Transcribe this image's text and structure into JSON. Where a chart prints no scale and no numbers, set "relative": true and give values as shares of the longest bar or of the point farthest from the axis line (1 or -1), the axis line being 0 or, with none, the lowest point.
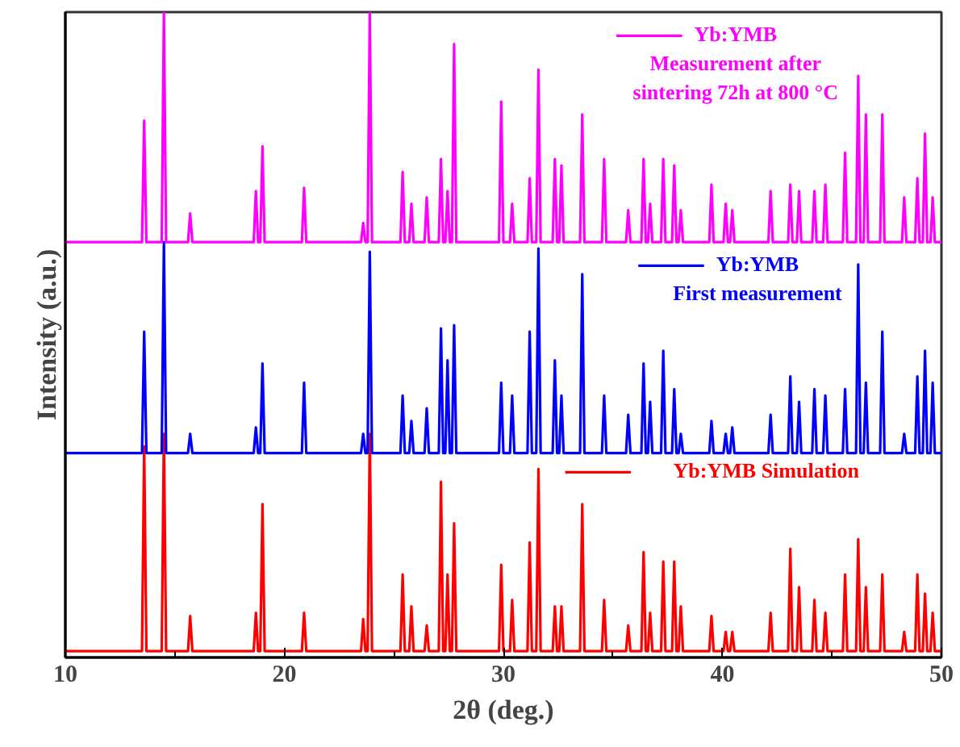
{
  "chart_data": {
    "type": "line",
    "relative": true,
    "xlabel": "2θ (deg.)",
    "ylabel": "Intensity (a.u.)",
    "grid": false,
    "tick_labels": "x",
    "legend": "top right",
    "xlim": [
      10,
      50
    ],
    "xticks": [
      10,
      {
        "value": 15,
        "label": null
      },
      20,
      {
        "value": 25,
        "label": null
      },
      30,
      {
        "value": 35,
        "label": null
      },
      40,
      {
        "value": 45,
        "label": null
      },
      50
    ],
    "x": [
      10,
      13.5,
      13.6,
      13.7,
      14.4,
      14.5,
      14.6,
      15.6,
      15.7,
      15.8,
      18.6,
      18.7,
      18.8,
      18.9,
      19.0,
      19.1,
      20.8,
      20.9,
      21.0,
      23.5,
      23.6,
      23.7,
      23.8,
      23.9,
      24.0,
      25.3,
      25.4,
      25.5,
      25.7,
      25.8,
      25.9,
      26.4,
      26.5,
      26.6,
      27.05,
      27.15,
      27.25,
      27.35,
      27.45,
      27.55,
      27.65,
      27.75,
      27.85,
      29.8,
      29.9,
      30.0,
      30.3,
      30.4,
      30.5,
      31.1,
      31.2,
      31.3,
      31.5,
      31.6,
      31.7,
      32.25,
      32.35,
      32.45,
      32.55,
      32.65,
      32.75,
      33.5,
      33.6,
      33.7,
      34.5,
      34.6,
      34.7,
      35.6,
      35.7,
      35.8,
      36.3,
      36.4,
      36.5,
      36.6,
      36.7,
      36.8,
      37.2,
      37.3,
      37.4,
      37.7,
      37.8,
      37.9,
      38.0,
      38.1,
      38.2,
      39.4,
      39.5,
      39.6,
      40.05,
      40.15,
      40.25,
      40.35,
      40.45,
      40.55,
      42.1,
      42.2,
      42.3,
      43.0,
      43.1,
      43.2,
      43.4,
      43.5,
      43.6,
      44.1,
      44.2,
      44.3,
      44.6,
      44.7,
      44.8,
      45.5,
      45.6,
      45.7,
      46.1,
      46.2,
      46.3,
      46.45,
      46.55,
      46.65,
      47.2,
      47.3,
      47.4,
      48.2,
      48.3,
      48.4,
      48.8,
      48.9,
      49.0,
      49.15,
      49.25,
      49.35,
      49.5,
      49.6,
      49.7,
      50
    ],
    "series": [
      {
        "name": "Yb:YMB Simulation",
        "color": "#ff0000",
        "values": [
          0,
          0,
          0.32,
          0,
          0,
          0.34,
          0,
          0,
          0.055,
          0,
          0,
          0.06,
          0,
          0,
          0.23,
          0,
          0,
          0.06,
          0,
          0,
          0.05,
          0,
          0,
          0.34,
          0,
          0,
          0.12,
          0,
          0,
          0.07,
          0,
          0,
          0.04,
          0,
          0,
          0.265,
          0,
          0,
          0.12,
          0,
          0,
          0.2,
          0,
          0,
          0.135,
          0,
          0,
          0.08,
          0,
          0,
          0.17,
          0,
          0,
          0.285,
          0,
          0,
          0.07,
          0,
          0,
          0.07,
          0,
          0,
          0.23,
          0,
          0,
          0.08,
          0,
          0,
          0.04,
          0,
          0,
          0.155,
          0,
          0,
          0.06,
          0,
          0,
          0.14,
          0,
          0,
          0.14,
          0,
          0,
          0.07,
          0,
          0,
          0.055,
          0,
          0,
          0.03,
          0,
          0,
          0.03,
          0,
          0,
          0.06,
          0,
          0,
          0.16,
          0,
          0,
          0.1,
          0,
          0,
          0.08,
          0,
          0,
          0.06,
          0,
          0,
          0.12,
          0,
          0,
          0.175,
          0,
          0,
          0.1,
          0,
          0,
          0.12,
          0,
          0,
          0.03,
          0,
          0,
          0.12,
          0,
          0,
          0.09,
          0,
          0,
          0.06,
          0,
          0
        ]
      },
      {
        "name": "Yb:YMB\nFirst measurement",
        "color": "#0000ff",
        "values": [
          0.31,
          0.31,
          0.5,
          0.31,
          0.31,
          0.64,
          0.31,
          0.31,
          0.34,
          0.31,
          0.31,
          0.35,
          0.31,
          0.31,
          0.45,
          0.31,
          0.31,
          0.42,
          0.31,
          0.31,
          0.34,
          0.31,
          0.31,
          0.625,
          0.31,
          0.31,
          0.4,
          0.31,
          0.31,
          0.36,
          0.31,
          0.31,
          0.38,
          0.31,
          0.31,
          0.505,
          0.31,
          0.31,
          0.455,
          0.31,
          0.31,
          0.51,
          0.31,
          0.31,
          0.42,
          0.31,
          0.31,
          0.4,
          0.31,
          0.31,
          0.5,
          0.31,
          0.31,
          0.63,
          0.31,
          0.31,
          0.455,
          0.31,
          0.31,
          0.4,
          0.31,
          0.31,
          0.59,
          0.31,
          0.31,
          0.4,
          0.31,
          0.31,
          0.37,
          0.31,
          0.31,
          0.45,
          0.31,
          0.31,
          0.39,
          0.31,
          0.31,
          0.47,
          0.31,
          0.31,
          0.41,
          0.31,
          0.31,
          0.34,
          0.31,
          0.31,
          0.36,
          0.31,
          0.31,
          0.34,
          0.31,
          0.31,
          0.35,
          0.31,
          0.31,
          0.37,
          0.31,
          0.31,
          0.43,
          0.31,
          0.31,
          0.39,
          0.31,
          0.31,
          0.41,
          0.31,
          0.31,
          0.4,
          0.31,
          0.31,
          0.41,
          0.31,
          0.31,
          0.605,
          0.31,
          0.31,
          0.42,
          0.31,
          0.31,
          0.5,
          0.31,
          0.31,
          0.34,
          0.31,
          0.31,
          0.43,
          0.31,
          0.31,
          0.47,
          0.31,
          0.31,
          0.42,
          0.31,
          0.31
        ]
      },
      {
        "name": "Yb:YMB\nMeasurement after\nsintering 72h at 800 °C",
        "color": "#ff00ff",
        "values": [
          0.64,
          0.64,
          0.83,
          0.64,
          0.64,
          1.0,
          0.64,
          0.64,
          0.685,
          0.64,
          0.64,
          0.72,
          0.64,
          0.64,
          0.79,
          0.64,
          0.64,
          0.725,
          0.64,
          0.64,
          0.67,
          0.64,
          0.64,
          1.0,
          0.64,
          0.64,
          0.75,
          0.64,
          0.64,
          0.7,
          0.64,
          0.64,
          0.71,
          0.64,
          0.64,
          0.77,
          0.64,
          0.64,
          0.72,
          0.64,
          0.64,
          0.95,
          0.64,
          0.64,
          0.86,
          0.64,
          0.64,
          0.7,
          0.64,
          0.64,
          0.74,
          0.64,
          0.64,
          0.91,
          0.64,
          0.64,
          0.77,
          0.64,
          0.64,
          0.76,
          0.64,
          0.64,
          0.84,
          0.64,
          0.64,
          0.77,
          0.64,
          0.64,
          0.69,
          0.64,
          0.64,
          0.77,
          0.64,
          0.64,
          0.7,
          0.64,
          0.64,
          0.77,
          0.64,
          0.64,
          0.76,
          0.64,
          0.64,
          0.69,
          0.64,
          0.64,
          0.73,
          0.64,
          0.64,
          0.7,
          0.64,
          0.64,
          0.69,
          0.64,
          0.64,
          0.72,
          0.64,
          0.64,
          0.73,
          0.64,
          0.64,
          0.72,
          0.64,
          0.64,
          0.72,
          0.64,
          0.64,
          0.73,
          0.64,
          0.64,
          0.78,
          0.64,
          0.64,
          0.9,
          0.64,
          0.64,
          0.84,
          0.64,
          0.64,
          0.84,
          0.64,
          0.64,
          0.71,
          0.64,
          0.64,
          0.74,
          0.64,
          0.64,
          0.81,
          0.64,
          0.64,
          0.71,
          0.64,
          0.64
        ]
      }
    ]
  }
}
